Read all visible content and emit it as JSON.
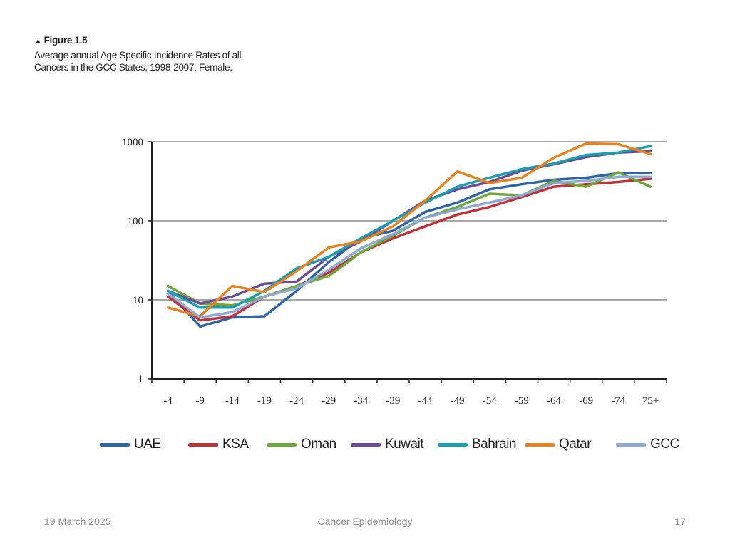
{
  "figure": {
    "marker": "▲",
    "label": "Figure 1.5",
    "description": "Average annual Age Specific Incidence Rates of all Cancers in the GCC States, 1998-2007: Female."
  },
  "chart_data": {
    "type": "line",
    "title": "Average annual Age Specific Incidence Rates of all Cancers in the GCC States, 1998-2007: Female.",
    "xlabel": "",
    "ylabel": "",
    "yscale": "log",
    "ylim": [
      1,
      1000
    ],
    "yticks": [
      {
        "value": 1,
        "label": "1"
      },
      {
        "value": 10,
        "label": "10"
      },
      {
        "value": 100,
        "label": "100"
      },
      {
        "value": 1000,
        "label": "1000"
      }
    ],
    "grid": "horizontal",
    "legend_position": "bottom",
    "categories": [
      "-4",
      "-9",
      "-14",
      "-19",
      "-24",
      "-29",
      "-34",
      "-39",
      "-44",
      "-49",
      "-54",
      "-59",
      "-64",
      "-69",
      "-74",
      "75+"
    ],
    "series": [
      {
        "name": "UAE",
        "color": "#2e65a8",
        "values": [
          13,
          4.6,
          6,
          6.2,
          13,
          30,
          60,
          75,
          130,
          170,
          250,
          290,
          330,
          350,
          400,
          400
        ]
      },
      {
        "name": "KSA",
        "color": "#c0323a",
        "values": [
          11,
          5.5,
          6.2,
          11,
          15,
          22,
          40,
          60,
          85,
          120,
          150,
          200,
          270,
          290,
          310,
          340
        ]
      },
      {
        "name": "Oman",
        "color": "#6ea83a",
        "values": [
          15,
          9,
          8.5,
          11,
          15,
          20,
          40,
          65,
          110,
          150,
          220,
          210,
          320,
          270,
          410,
          270
        ]
      },
      {
        "name": "Kuwait",
        "color": "#6b4a96",
        "values": [
          13,
          9,
          11,
          16,
          17,
          35,
          55,
          100,
          180,
          250,
          310,
          430,
          520,
          640,
          730,
          760
        ]
      },
      {
        "name": "Bahrain",
        "color": "#1a9fb1",
        "values": [
          13,
          8,
          8,
          13,
          25,
          35,
          60,
          100,
          170,
          270,
          350,
          450,
          530,
          680,
          730,
          880
        ]
      },
      {
        "name": "Qatar",
        "color": "#e8821e",
        "values": [
          8,
          6.2,
          15,
          12.5,
          23,
          46,
          55,
          85,
          180,
          420,
          300,
          350,
          630,
          950,
          930,
          700
        ]
      },
      {
        "name": "GCC",
        "color": "#8ea9d6",
        "values": [
          12,
          6,
          7,
          11,
          14,
          24,
          45,
          68,
          110,
          140,
          170,
          210,
          300,
          320,
          360,
          360
        ]
      }
    ]
  },
  "footer": {
    "date": "19 March 2025",
    "title": "Cancer Epidemiology",
    "page": "17"
  }
}
